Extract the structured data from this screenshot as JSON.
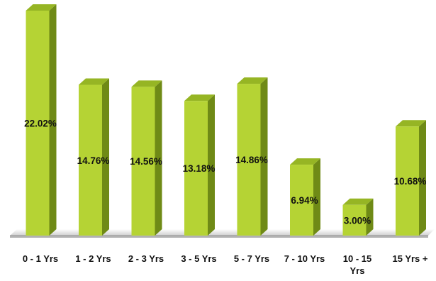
{
  "chart_data": {
    "type": "bar",
    "title": "",
    "xlabel": "",
    "ylabel": "",
    "categories": [
      "0 - 1 Yrs",
      "1 - 2 Yrs",
      "2 - 3 Yrs",
      "3 - 5 Yrs",
      "5 - 7 Yrs",
      "7 - 10 Yrs",
      "10 - 15 Yrs",
      "15 Yrs +"
    ],
    "values": [
      22.02,
      14.76,
      14.56,
      13.18,
      14.86,
      6.94,
      3.0,
      10.68
    ],
    "data_labels": [
      "22.02%",
      "14.76%",
      "14.56%",
      "13.18%",
      "14.86%",
      "6.94%",
      "3.00%",
      "10.68%"
    ],
    "ylim": [
      0,
      22.02
    ],
    "grid": false,
    "legend": "none",
    "style": "3d-column"
  },
  "colors": {
    "bar_front": "#b5d334",
    "bar_side": "#6f8a16",
    "bar_top": "#96b524",
    "floor": "#d9d9d9",
    "floor_edge": "#8c8c8c"
  }
}
